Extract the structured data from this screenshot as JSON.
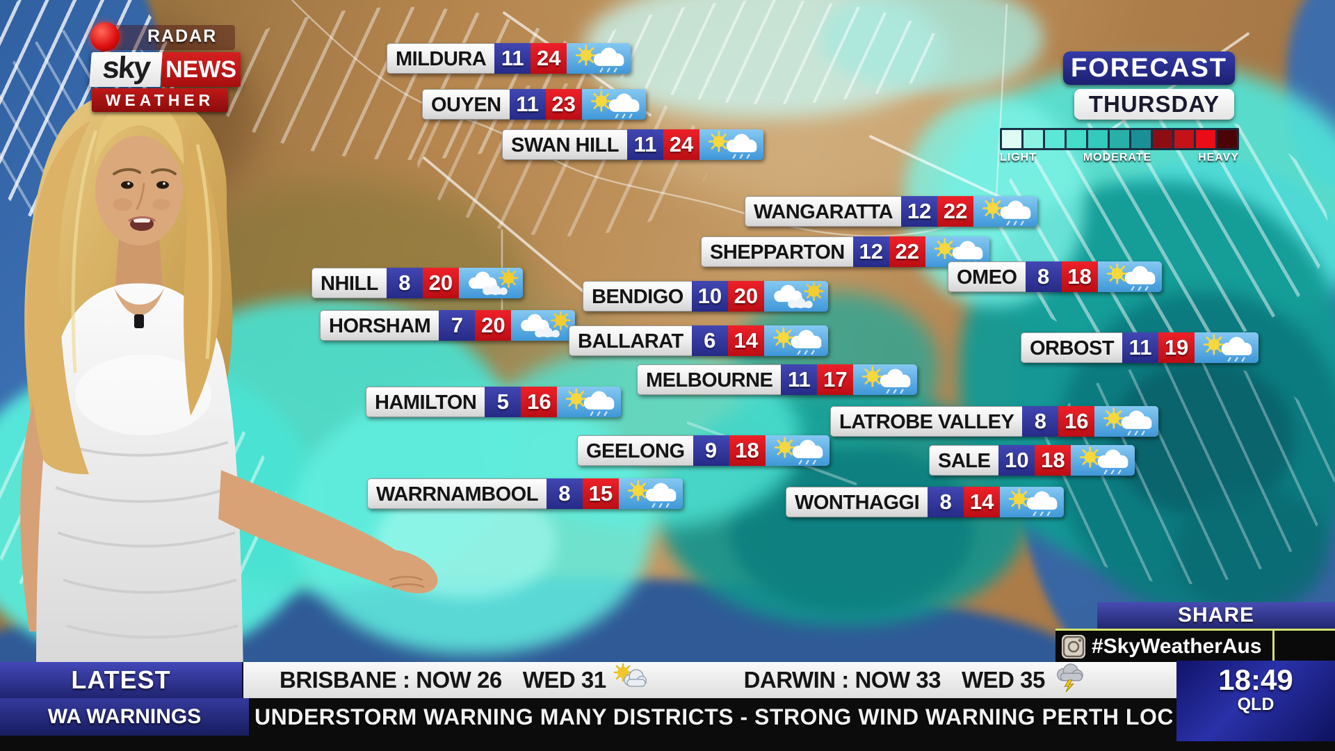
{
  "branding": {
    "radar_label": "RADAR",
    "sky": "sky",
    "news": "NEWS",
    "weather": "WEATHER"
  },
  "header": {
    "title": "FORECAST",
    "day": "THURSDAY"
  },
  "legend": {
    "labels": [
      "LIGHT",
      "MODERATE",
      "HEAVY"
    ],
    "colors": [
      "#dffbf3",
      "#8df2e2",
      "#5ce8d6",
      "#45dcca",
      "#33c9bc",
      "#28b0a8",
      "#1a8f97",
      "#8c0e14",
      "#c41218",
      "#ea0c16",
      "#4a0408"
    ]
  },
  "cities": [
    {
      "name": "MILDURA",
      "low": "11",
      "high": "24",
      "icon": "sun-cloud"
    },
    {
      "name": "OUYEN",
      "low": "11",
      "high": "23",
      "icon": "sun-cloud"
    },
    {
      "name": "SWAN HILL",
      "low": "11",
      "high": "24",
      "icon": "sun-cloud"
    },
    {
      "name": "WANGARATTA",
      "low": "12",
      "high": "22",
      "icon": "sun-cloud"
    },
    {
      "name": "SHEPPARTON",
      "low": "12",
      "high": "22",
      "icon": "sun-cloud"
    },
    {
      "name": "NHILL",
      "low": "8",
      "high": "20",
      "icon": "cloud-sun"
    },
    {
      "name": "BENDIGO",
      "low": "10",
      "high": "20",
      "icon": "cloud-sun"
    },
    {
      "name": "OMEO",
      "low": "8",
      "high": "18",
      "icon": "sun-cloud"
    },
    {
      "name": "HORSHAM",
      "low": "7",
      "high": "20",
      "icon": "cloud-sun"
    },
    {
      "name": "BALLARAT",
      "low": "6",
      "high": "14",
      "icon": "sun-cloud"
    },
    {
      "name": "MELBOURNE",
      "low": "11",
      "high": "17",
      "icon": "sun-cloud"
    },
    {
      "name": "ORBOST",
      "low": "11",
      "high": "19",
      "icon": "sun-cloud"
    },
    {
      "name": "HAMILTON",
      "low": "5",
      "high": "16",
      "icon": "sun-cloud"
    },
    {
      "name": "LATROBE VALLEY",
      "low": "8",
      "high": "16",
      "icon": "sun-cloud"
    },
    {
      "name": "GEELONG",
      "low": "9",
      "high": "18",
      "icon": "sun-cloud"
    },
    {
      "name": "SALE",
      "low": "10",
      "high": "18",
      "icon": "sun-cloud"
    },
    {
      "name": "WARRNAMBOOL",
      "low": "8",
      "high": "15",
      "icon": "sun-cloud"
    },
    {
      "name": "WONTHAGGI",
      "low": "8",
      "high": "14",
      "icon": "sun-cloud"
    }
  ],
  "share": {
    "title": "SHARE",
    "hashtag": "#SkyWeatherAus",
    "icon": "instagram-icon"
  },
  "ticker": {
    "latest_label": "LATEST",
    "warnings_label": "WA WARNINGS",
    "brisbane": "BRISBANE : NOW 26",
    "brisbane_wed": "WED 31",
    "brisbane_icon": "sun-cloud-small",
    "darwin": "DARWIN : NOW 33",
    "darwin_wed": "WED 35",
    "darwin_icon": "storm-cloud",
    "scroll_text": "UNDERSTORM WARNING MANY DISTRICTS - STRONG WIND WARNING PERTH LOCAL WATERS",
    "clock_time": "18:49",
    "clock_region": "QLD"
  },
  "colors": {
    "min_temp_bg": "#2b2f8e",
    "max_temp_bg": "#d01016",
    "icon_panel_bg": "#54a8e0",
    "forecast_bg": "#23278f"
  }
}
